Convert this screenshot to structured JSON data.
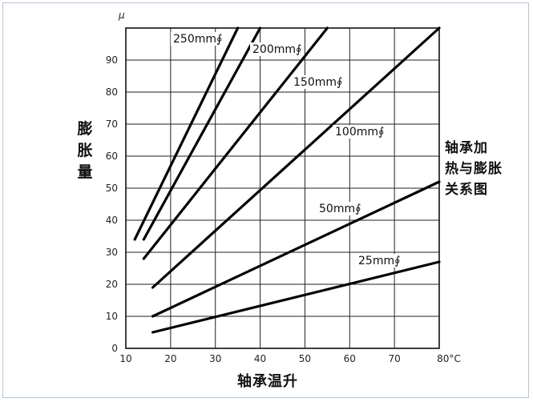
{
  "chart_data": {
    "type": "line",
    "title": "",
    "caption": "轴承加热与膨胀关系图",
    "caption_lines": [
      "轴承加",
      "热与膨胀",
      "关系图"
    ],
    "xlabel": "轴承温升",
    "ylabel": "膨胀量",
    "ylabel_chars": [
      "膨",
      "胀",
      "量"
    ],
    "y_unit": "μ",
    "xlim": [
      10,
      80
    ],
    "ylim": [
      0,
      100
    ],
    "xticks": [
      10,
      20,
      30,
      40,
      50,
      60,
      70,
      80
    ],
    "xtick_labels": [
      "10",
      "20",
      "30",
      "40",
      "50",
      "60",
      "70",
      "80°C"
    ],
    "yticks": [
      0,
      10,
      20,
      30,
      40,
      50,
      60,
      70,
      80,
      90
    ],
    "grid": true,
    "series": [
      {
        "name": "250mm∮",
        "x": [
          12,
          35
        ],
        "y": [
          34,
          100
        ]
      },
      {
        "name": "200mm∮",
        "x": [
          14,
          40
        ],
        "y": [
          34,
          100
        ]
      },
      {
        "name": "150mm∮",
        "x": [
          14,
          55
        ],
        "y": [
          28,
          100
        ]
      },
      {
        "name": "100mm∮",
        "x": [
          16,
          80
        ],
        "y": [
          19,
          100
        ]
      },
      {
        "name": "50mm∮",
        "x": [
          16,
          80
        ],
        "y": [
          10,
          52
        ]
      },
      {
        "name": "25mm∮",
        "x": [
          16,
          80
        ],
        "y": [
          5,
          27
        ]
      }
    ]
  }
}
